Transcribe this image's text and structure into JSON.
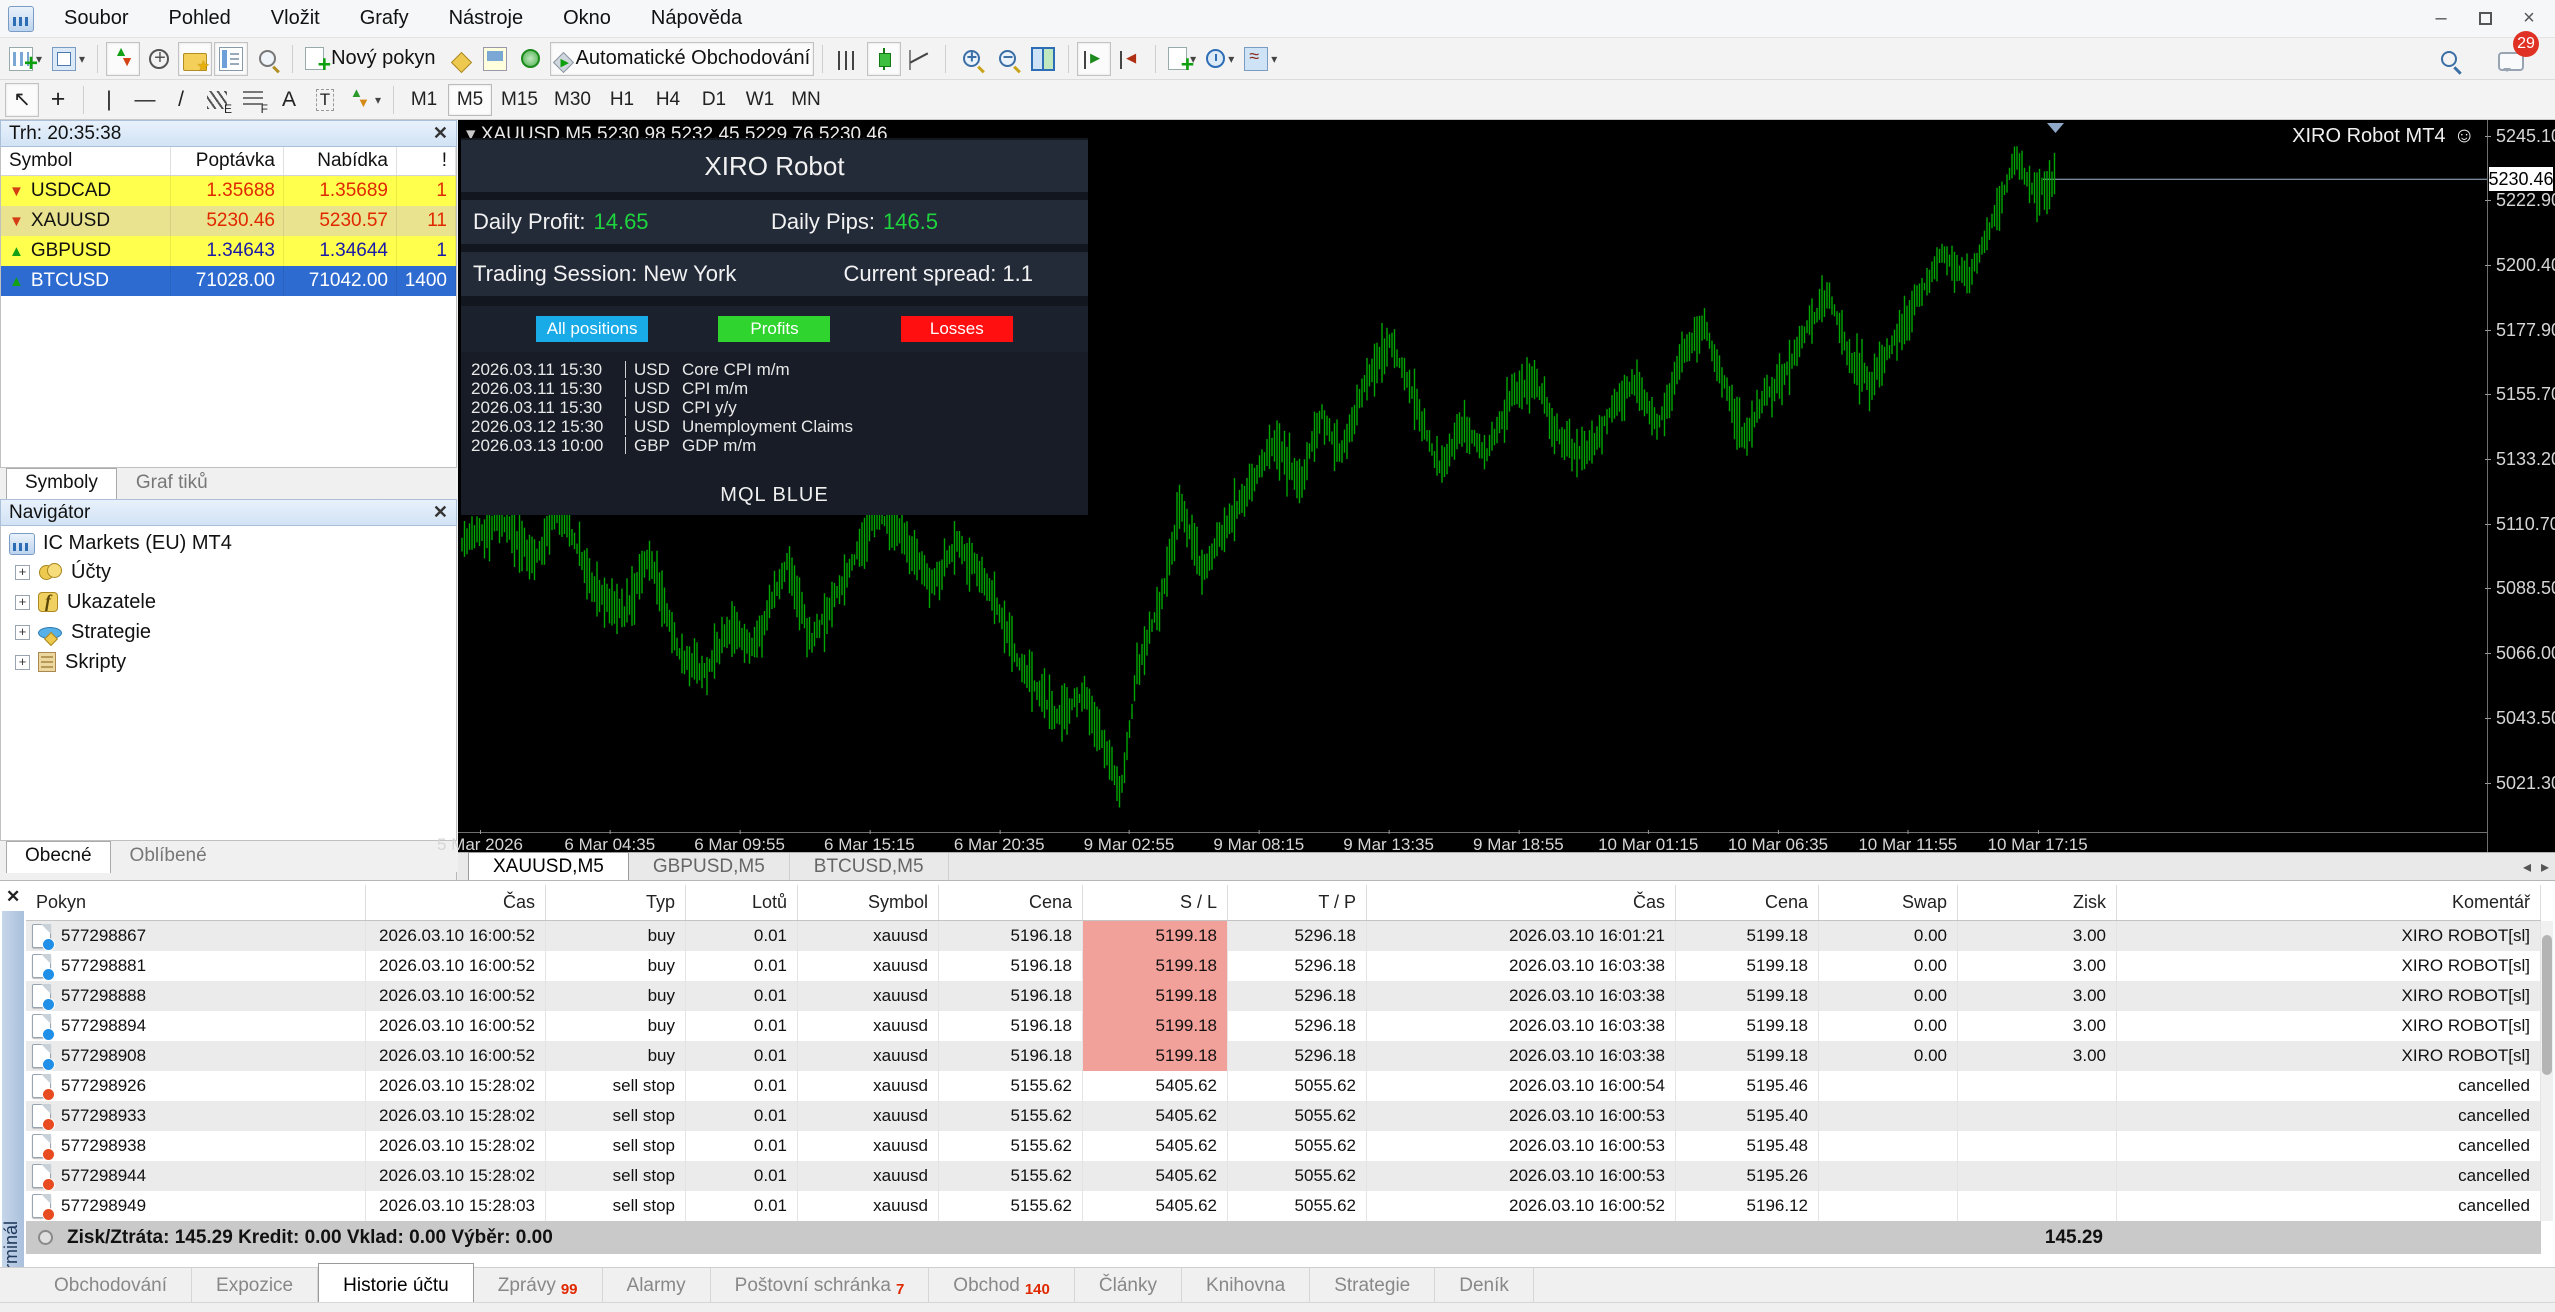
{
  "menu": {
    "items": [
      "Soubor",
      "Pohled",
      "Vložit",
      "Grafy",
      "Nástroje",
      "Okno",
      "Nápověda"
    ]
  },
  "window_controls": {
    "minimize": "–",
    "close": "×"
  },
  "toolbar": {
    "new_order_label": "Nový pokyn",
    "auto_trading_label": "Automatické Obchodování",
    "chat_badge": "29",
    "timeframes": [
      "M1",
      "M5",
      "M15",
      "M30",
      "H1",
      "H4",
      "D1",
      "W1",
      "MN"
    ],
    "active_timeframe": "M5"
  },
  "market_watch": {
    "title": "Trh: 20:35:38",
    "columns": [
      "Symbol",
      "Poptávka",
      "Nabídka",
      "!"
    ],
    "rows": [
      {
        "symbol": "USDCAD",
        "bid": "1.35688",
        "ask": "1.35689",
        "spread": "1",
        "dir": "down",
        "style": "yellow",
        "val": "val-red"
      },
      {
        "symbol": "XAUUSD",
        "bid": "5230.46",
        "ask": "5230.57",
        "spread": "11",
        "dir": "down",
        "style": "khaki",
        "val": "val-red"
      },
      {
        "symbol": "GBPUSD",
        "bid": "1.34643",
        "ask": "1.34644",
        "spread": "1",
        "dir": "up",
        "style": "yellow",
        "val": "val-blue"
      },
      {
        "symbol": "BTCUSD",
        "bid": "71028.00",
        "ask": "71042.00",
        "spread": "1400",
        "dir": "up",
        "style": "sel",
        "val": "val-white"
      }
    ],
    "tabs": [
      "Symboly",
      "Graf tiků"
    ],
    "active_tab": "Symboly"
  },
  "navigator": {
    "title": "Navigátor",
    "root": "IC Markets (EU) MT4",
    "items": [
      {
        "label": "Účty",
        "icon": "accounts"
      },
      {
        "label": "Ukazatele",
        "icon": "indicators"
      },
      {
        "label": "Strategie",
        "icon": "strategies"
      },
      {
        "label": "Skripty",
        "icon": "scripts"
      }
    ],
    "tabs": [
      "Obecné",
      "Oblíbené"
    ],
    "active_tab": "Obecné"
  },
  "chart": {
    "header": "XAUUSD,M5  5230.98 5232.45 5229.76 5230.46",
    "watermark": "XIRO Robot MT4",
    "overlay": {
      "title": "XIRO Robot",
      "daily_profit_label": "Daily Profit:",
      "daily_profit": "14.65",
      "daily_pips_label": "Daily Pips:",
      "daily_pips": "146.5",
      "session": "Trading Session: New York",
      "spread": "Current spread: 1.1",
      "buttons": [
        "All positions",
        "Profits",
        "Losses"
      ],
      "news": [
        {
          "time": "2026.03.11 15:30",
          "currency": "USD",
          "event": "Core CPI m/m"
        },
        {
          "time": "2026.03.11 15:30",
          "currency": "USD",
          "event": "CPI m/m"
        },
        {
          "time": "2026.03.11 15:30",
          "currency": "USD",
          "event": "CPI y/y"
        },
        {
          "time": "2026.03.12 15:30",
          "currency": "USD",
          "event": "Unemployment Claims"
        },
        {
          "time": "2026.03.13 10:00",
          "currency": "GBP",
          "event": "GDP m/m"
        }
      ],
      "footer": "MQL BLUE"
    },
    "current_price": "5230.46",
    "tabs": [
      "XAUUSD,M5",
      "GBPUSD,M5",
      "BTCUSD,M5"
    ],
    "active_tab": "XAUUSD,M5"
  },
  "chart_data": {
    "type": "bar",
    "symbol": "XAUUSD",
    "timeframe": "M5",
    "open": 5230.98,
    "high": 5232.45,
    "low": 5229.76,
    "close": 5230.46,
    "current_price": 5230.46,
    "y_ticks": [
      "5245.10",
      "5222.90",
      "5200.40",
      "5177.90",
      "5155.70",
      "5133.20",
      "5110.70",
      "5088.50",
      "5066.00",
      "5043.50",
      "5021.30"
    ],
    "x_ticks": [
      "5 Mar 2026",
      "6 Mar 04:35",
      "6 Mar 09:55",
      "6 Mar 15:15",
      "6 Mar 20:35",
      "9 Mar 02:55",
      "9 Mar 08:15",
      "9 Mar 13:35",
      "9 Mar 18:55",
      "10 Mar 01:15",
      "10 Mar 06:35",
      "10 Mar 11:55",
      "10 Mar 17:15"
    ],
    "ylim": [
      5010,
      5250
    ],
    "bar_color": "#00a600",
    "keypoints": [
      [
        3,
        5105
      ],
      [
        44,
        5112
      ],
      [
        77,
        5098
      ],
      [
        101,
        5118
      ],
      [
        134,
        5090
      ],
      [
        166,
        5080
      ],
      [
        191,
        5100
      ],
      [
        223,
        5065
      ],
      [
        248,
        5060
      ],
      [
        272,
        5075
      ],
      [
        296,
        5068
      ],
      [
        329,
        5098
      ],
      [
        353,
        5070
      ],
      [
        386,
        5092
      ],
      [
        418,
        5115
      ],
      [
        443,
        5108
      ],
      [
        475,
        5090
      ],
      [
        500,
        5105
      ],
      [
        532,
        5088
      ],
      [
        565,
        5060
      ],
      [
        598,
        5045
      ],
      [
        627,
        5052
      ],
      [
        646,
        5035
      ],
      [
        663,
        5018
      ],
      [
        679,
        5060
      ],
      [
        703,
        5085
      ],
      [
        723,
        5118
      ],
      [
        744,
        5095
      ],
      [
        768,
        5110
      ],
      [
        793,
        5125
      ],
      [
        817,
        5140
      ],
      [
        842,
        5125
      ],
      [
        863,
        5150
      ],
      [
        883,
        5135
      ],
      [
        907,
        5160
      ],
      [
        932,
        5175
      ],
      [
        956,
        5155
      ],
      [
        981,
        5130
      ],
      [
        1005,
        5145
      ],
      [
        1029,
        5135
      ],
      [
        1054,
        5155
      ],
      [
        1078,
        5160
      ],
      [
        1103,
        5140
      ],
      [
        1127,
        5135
      ],
      [
        1152,
        5150
      ],
      [
        1176,
        5160
      ],
      [
        1200,
        5145
      ],
      [
        1225,
        5170
      ],
      [
        1246,
        5180
      ],
      [
        1266,
        5160
      ],
      [
        1285,
        5140
      ],
      [
        1306,
        5155
      ],
      [
        1331,
        5165
      ],
      [
        1350,
        5180
      ],
      [
        1371,
        5190
      ],
      [
        1391,
        5170
      ],
      [
        1412,
        5160
      ],
      [
        1437,
        5175
      ],
      [
        1461,
        5190
      ],
      [
        1485,
        5205
      ],
      [
        1510,
        5195
      ],
      [
        1534,
        5215
      ],
      [
        1558,
        5238
      ],
      [
        1578,
        5225
      ],
      [
        1597,
        5231
      ]
    ]
  },
  "terminal": {
    "columns": [
      "Pokyn",
      "Čas",
      "Typ",
      "Lotů",
      "Symbol",
      "Cena",
      "S / L",
      "T / P",
      "Čas",
      "Cena",
      "Swap",
      "Zisk",
      "Komentář"
    ],
    "rows": [
      {
        "id": "577298867",
        "time": "2026.03.10 16:00:52",
        "type": "buy",
        "lots": "0.01",
        "symbol": "xauusd",
        "price": "5196.18",
        "sl": "5199.18",
        "tp": "5296.18",
        "close_time": "2026.03.10 16:01:21",
        "close_price": "5199.18",
        "swap": "0.00",
        "profit": "3.00",
        "comment": "XIRO ROBOT[sl]",
        "kind": "buy",
        "sl_hl": true
      },
      {
        "id": "577298881",
        "time": "2026.03.10 16:00:52",
        "type": "buy",
        "lots": "0.01",
        "symbol": "xauusd",
        "price": "5196.18",
        "sl": "5199.18",
        "tp": "5296.18",
        "close_time": "2026.03.10 16:03:38",
        "close_price": "5199.18",
        "swap": "0.00",
        "profit": "3.00",
        "comment": "XIRO ROBOT[sl]",
        "kind": "buy",
        "sl_hl": true
      },
      {
        "id": "577298888",
        "time": "2026.03.10 16:00:52",
        "type": "buy",
        "lots": "0.01",
        "symbol": "xauusd",
        "price": "5196.18",
        "sl": "5199.18",
        "tp": "5296.18",
        "close_time": "2026.03.10 16:03:38",
        "close_price": "5199.18",
        "swap": "0.00",
        "profit": "3.00",
        "comment": "XIRO ROBOT[sl]",
        "kind": "buy",
        "sl_hl": true
      },
      {
        "id": "577298894",
        "time": "2026.03.10 16:00:52",
        "type": "buy",
        "lots": "0.01",
        "symbol": "xauusd",
        "price": "5196.18",
        "sl": "5199.18",
        "tp": "5296.18",
        "close_time": "2026.03.10 16:03:38",
        "close_price": "5199.18",
        "swap": "0.00",
        "profit": "3.00",
        "comment": "XIRO ROBOT[sl]",
        "kind": "buy",
        "sl_hl": true
      },
      {
        "id": "577298908",
        "time": "2026.03.10 16:00:52",
        "type": "buy",
        "lots": "0.01",
        "symbol": "xauusd",
        "price": "5196.18",
        "sl": "5199.18",
        "tp": "5296.18",
        "close_time": "2026.03.10 16:03:38",
        "close_price": "5199.18",
        "swap": "0.00",
        "profit": "3.00",
        "comment": "XIRO ROBOT[sl]",
        "kind": "buy",
        "sl_hl": true
      },
      {
        "id": "577298926",
        "time": "2026.03.10 15:28:02",
        "type": "sell stop",
        "lots": "0.01",
        "symbol": "xauusd",
        "price": "5155.62",
        "sl": "5405.62",
        "tp": "5055.62",
        "close_time": "2026.03.10 16:00:54",
        "close_price": "5195.46",
        "swap": "",
        "profit": "",
        "comment": "cancelled",
        "kind": "sell",
        "sl_hl": false
      },
      {
        "id": "577298933",
        "time": "2026.03.10 15:28:02",
        "type": "sell stop",
        "lots": "0.01",
        "symbol": "xauusd",
        "price": "5155.62",
        "sl": "5405.62",
        "tp": "5055.62",
        "close_time": "2026.03.10 16:00:53",
        "close_price": "5195.40",
        "swap": "",
        "profit": "",
        "comment": "cancelled",
        "kind": "sell",
        "sl_hl": false
      },
      {
        "id": "577298938",
        "time": "2026.03.10 15:28:02",
        "type": "sell stop",
        "lots": "0.01",
        "symbol": "xauusd",
        "price": "5155.62",
        "sl": "5405.62",
        "tp": "5055.62",
        "close_time": "2026.03.10 16:00:53",
        "close_price": "5195.48",
        "swap": "",
        "profit": "",
        "comment": "cancelled",
        "kind": "sell",
        "sl_hl": false
      },
      {
        "id": "577298944",
        "time": "2026.03.10 15:28:02",
        "type": "sell stop",
        "lots": "0.01",
        "symbol": "xauusd",
        "price": "5155.62",
        "sl": "5405.62",
        "tp": "5055.62",
        "close_time": "2026.03.10 16:00:53",
        "close_price": "5195.26",
        "swap": "",
        "profit": "",
        "comment": "cancelled",
        "kind": "sell",
        "sl_hl": false
      },
      {
        "id": "577298949",
        "time": "2026.03.10 15:28:03",
        "type": "sell stop",
        "lots": "0.01",
        "symbol": "xauusd",
        "price": "5155.62",
        "sl": "5405.62",
        "tp": "5055.62",
        "close_time": "2026.03.10 16:00:52",
        "close_price": "5196.12",
        "swap": "",
        "profit": "",
        "comment": "cancelled",
        "kind": "sell",
        "sl_hl": false
      }
    ],
    "summary": "Zisk/Ztráta: 145.29  Kredit: 0.00  Vklad: 0.00  Výběr: 0.00",
    "summary_zisk": "145.29",
    "tabs": [
      {
        "label": "Obchodování",
        "badge": ""
      },
      {
        "label": "Expozice",
        "badge": ""
      },
      {
        "label": "Historie účtu",
        "badge": "",
        "active": true
      },
      {
        "label": "Zprávy",
        "badge": "99"
      },
      {
        "label": "Alarmy",
        "badge": ""
      },
      {
        "label": "Poštovní schránka",
        "badge": "7"
      },
      {
        "label": "Obchod",
        "badge": "140"
      },
      {
        "label": "Články",
        "badge": ""
      },
      {
        "label": "Knihovna",
        "badge": ""
      },
      {
        "label": "Strategie",
        "badge": ""
      },
      {
        "label": "Deník",
        "badge": ""
      }
    ],
    "side_label": "Terminál"
  },
  "colors": {
    "selection_blue": "#2e6bd0",
    "row_yellow": "#ffff4d",
    "row_khaki": "#e9e28e",
    "bar_green": "#00a600",
    "profit_green": "#2fd42f",
    "loss_red": "#ff0f0f",
    "all_positions_blue": "#19aae8",
    "sl_pink": "#f2a09a",
    "badge_red": "#e03224",
    "value_red": "#e02800",
    "value_navy": "#1a1aa8"
  }
}
